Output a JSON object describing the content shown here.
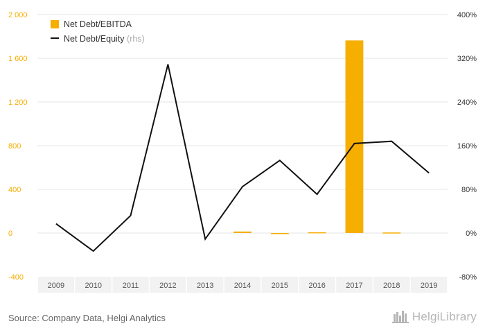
{
  "chart_data": {
    "type": "bar",
    "categories": [
      "2009",
      "2010",
      "2011",
      "2012",
      "2013",
      "2014",
      "2015",
      "2016",
      "2017",
      "2018",
      "2019"
    ],
    "series": [
      {
        "name": "Net Debt/EBITDA",
        "kind": "bar",
        "axis": "left",
        "color": "#f6ae00",
        "values": [
          null,
          null,
          null,
          null,
          null,
          14,
          -8,
          7,
          1763,
          5,
          null
        ]
      },
      {
        "name": "Net Debt/Equity",
        "kind": "line",
        "axis": "right",
        "color": "#111111",
        "values": [
          17,
          -33,
          32,
          309,
          -11,
          85,
          133,
          71,
          164,
          168,
          110
        ]
      }
    ],
    "legend": {
      "bar_label": "Net Debt/EBITDA",
      "line_label": "Net Debt/Equity",
      "line_suffix": "(rhs)",
      "position": "top-left"
    },
    "y_left": {
      "ylim": [
        -400,
        2000
      ],
      "ticks": [
        -400,
        0,
        400,
        800,
        1200,
        1600,
        2000
      ],
      "tick_labels": [
        "-400",
        "0",
        "400",
        "800",
        "1 200",
        "1 600",
        "2 000"
      ],
      "color": "#f6ae00"
    },
    "y_right": {
      "ylim": [
        -80,
        400
      ],
      "ticks": [
        -80,
        0,
        80,
        160,
        240,
        320,
        400
      ],
      "tick_labels": [
        "-80%",
        "0%",
        "80%",
        "160%",
        "240%",
        "320%",
        "400%"
      ],
      "color": "#333333"
    },
    "grid": true
  },
  "footer": {
    "source": "Source: Company Data, Helgi Analytics",
    "brand": "HelgiLibrary",
    "brand_icon": "library-books-icon"
  }
}
